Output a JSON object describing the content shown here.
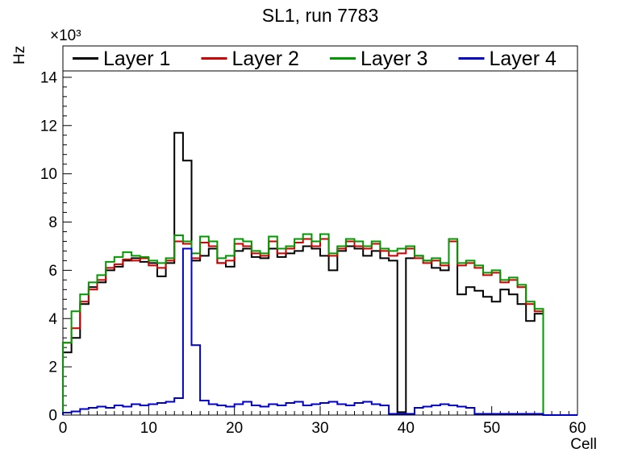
{
  "chart_data": {
    "type": "line",
    "style": "step-histogram",
    "title": "SL1, run 7783",
    "xlabel": "Cell",
    "ylabel": "Hz",
    "y_exponent": "×10³",
    "xlim": [
      0,
      60
    ],
    "ylim": [
      0,
      15.3
    ],
    "x_major_ticks": [
      0,
      10,
      20,
      30,
      40,
      50,
      60
    ],
    "y_major_ticks": [
      0,
      2,
      4,
      6,
      8,
      10,
      12,
      14
    ],
    "x_minor_step": 1,
    "y_minor_step": 0.4,
    "bin_width": 1,
    "grid": false,
    "legend_position": "top-inside-full-width",
    "frame_color": "#000000",
    "background_color": "#ffffff",
    "series": [
      {
        "name": "Layer 1",
        "color": "#000000",
        "values": [
          2.6,
          3.2,
          4.6,
          5.3,
          5.5,
          6.0,
          6.15,
          6.4,
          6.5,
          6.35,
          6.3,
          5.75,
          6.3,
          11.7,
          10.55,
          6.4,
          6.6,
          6.9,
          6.3,
          6.15,
          6.8,
          6.9,
          6.55,
          6.5,
          6.9,
          6.55,
          6.7,
          6.8,
          7.0,
          6.9,
          6.6,
          6.0,
          6.8,
          7.0,
          6.9,
          6.6,
          6.8,
          6.5,
          6.4,
          0.12,
          6.5,
          6.6,
          6.4,
          6.1,
          6.0,
          7.2,
          5.0,
          5.3,
          5.15,
          4.9,
          4.7,
          5.2,
          5.0,
          4.6,
          3.9,
          4.2,
          0,
          0,
          0,
          0
        ]
      },
      {
        "name": "Layer 2",
        "color": "#cc0000",
        "values": [
          3.0,
          3.6,
          4.7,
          5.2,
          5.6,
          6.1,
          6.25,
          6.45,
          6.4,
          6.5,
          6.2,
          6.1,
          6.4,
          7.2,
          7.1,
          6.5,
          7.15,
          7.0,
          6.3,
          6.4,
          7.1,
          7.0,
          6.7,
          6.6,
          7.2,
          6.7,
          6.9,
          7.15,
          7.3,
          7.0,
          7.3,
          6.6,
          6.9,
          7.2,
          7.0,
          6.9,
          7.1,
          6.8,
          6.6,
          6.7,
          6.9,
          6.5,
          6.3,
          6.4,
          6.2,
          7.2,
          6.2,
          6.3,
          6.1,
          5.8,
          5.9,
          5.5,
          5.6,
          5.3,
          4.6,
          4.3,
          0,
          0,
          0,
          0
        ]
      },
      {
        "name": "Layer 3",
        "color": "#009900",
        "values": [
          3.0,
          4.3,
          5.0,
          5.5,
          5.8,
          6.35,
          6.55,
          6.75,
          6.6,
          6.55,
          6.4,
          6.3,
          6.5,
          7.45,
          7.2,
          6.7,
          7.4,
          7.2,
          6.5,
          6.6,
          7.3,
          7.2,
          6.8,
          6.7,
          7.4,
          6.9,
          7.0,
          7.3,
          7.5,
          7.2,
          7.5,
          6.7,
          7.0,
          7.3,
          7.2,
          7.0,
          7.2,
          6.9,
          6.8,
          6.9,
          7.0,
          6.6,
          6.4,
          6.5,
          6.3,
          7.3,
          6.3,
          6.4,
          6.2,
          5.9,
          6.0,
          5.6,
          5.7,
          5.4,
          4.7,
          4.4,
          0,
          0,
          0,
          0
        ]
      },
      {
        "name": "Layer 4",
        "color": "#0000cc",
        "values": [
          0.1,
          0.15,
          0.25,
          0.3,
          0.35,
          0.3,
          0.4,
          0.35,
          0.45,
          0.4,
          0.45,
          0.5,
          0.55,
          0.7,
          6.9,
          2.9,
          0.6,
          0.45,
          0.4,
          0.35,
          0.45,
          0.55,
          0.4,
          0.35,
          0.45,
          0.4,
          0.5,
          0.55,
          0.4,
          0.45,
          0.5,
          0.55,
          0.45,
          0.4,
          0.5,
          0.55,
          0.45,
          0.4,
          0.05,
          0.05,
          0.05,
          0.3,
          0.35,
          0.4,
          0.45,
          0.4,
          0.35,
          0.3,
          0.05,
          0.05,
          0.05,
          0.05,
          0.05,
          0.05,
          0.05,
          0.05,
          0,
          0,
          0,
          0
        ]
      }
    ]
  }
}
